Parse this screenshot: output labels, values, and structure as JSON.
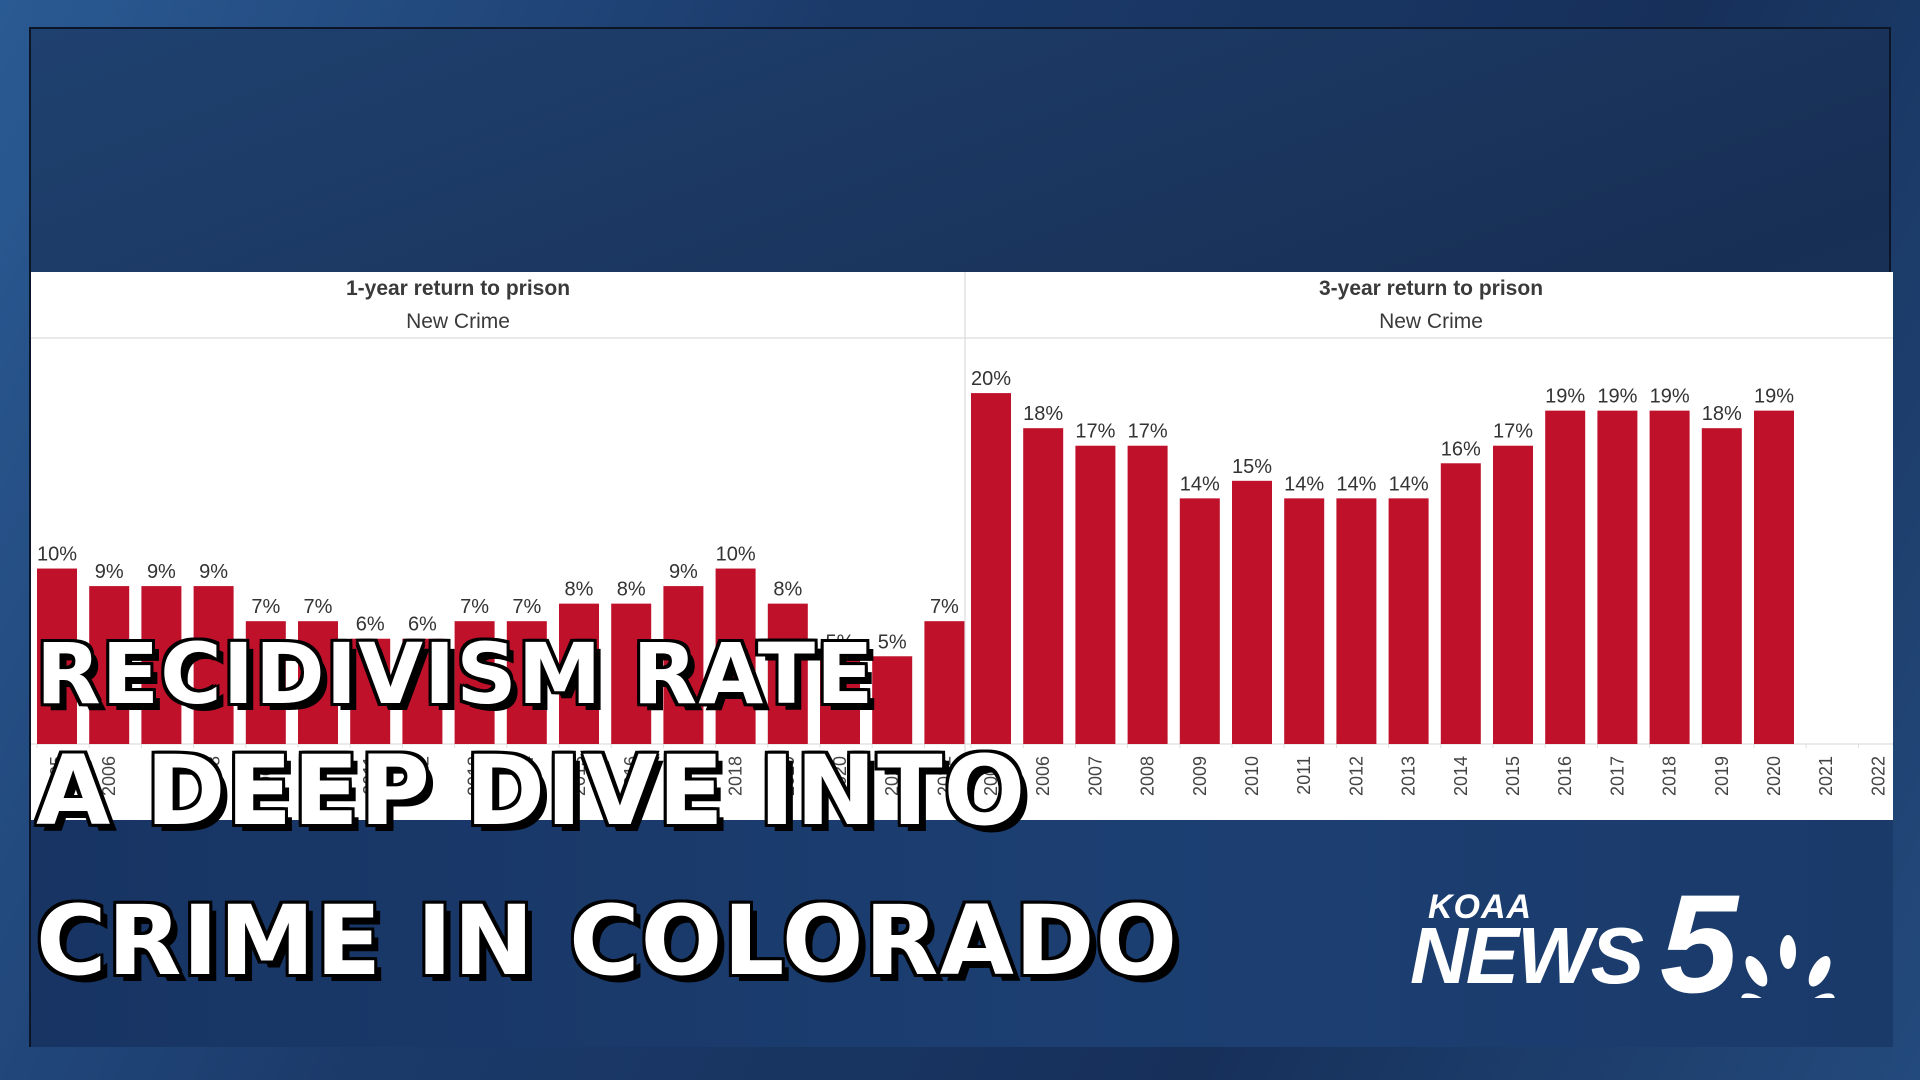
{
  "chart_data": [
    {
      "type": "bar",
      "title": "1-year return to prison",
      "subtitle": "New Crime",
      "categories": [
        "2005",
        "2006",
        "2007",
        "2008",
        "2009",
        "2010",
        "2011",
        "2012",
        "2013",
        "2014",
        "2015",
        "2016",
        "2017",
        "2018",
        "2019",
        "2020",
        "2021",
        "2022"
      ],
      "values": [
        10,
        9,
        9,
        9,
        7,
        7,
        6,
        6,
        7,
        7,
        8,
        8,
        9,
        10,
        8,
        5,
        5,
        7
      ],
      "data_labels": [
        "10%",
        "9%",
        "9%",
        "9%",
        "7%",
        "7%",
        "6%",
        "6%",
        "7%",
        "7%",
        "8%",
        "8%",
        "9%",
        "10%",
        "8%",
        "5%",
        "5%",
        "7%"
      ],
      "color": "#c0112b",
      "ylim": [
        0,
        22
      ]
    },
    {
      "type": "bar",
      "title": "3-year return to prison",
      "subtitle": "New Crime",
      "categories": [
        "2005",
        "2006",
        "2007",
        "2008",
        "2009",
        "2010",
        "2011",
        "2012",
        "2013",
        "2014",
        "2015",
        "2016",
        "2017",
        "2018",
        "2019",
        "2020",
        "2021",
        "2022"
      ],
      "values": [
        20,
        18,
        17,
        17,
        14,
        15,
        14,
        14,
        14,
        16,
        17,
        19,
        19,
        19,
        18,
        19,
        null,
        null
      ],
      "data_labels": [
        "20%",
        "18%",
        "17%",
        "17%",
        "14%",
        "15%",
        "14%",
        "14%",
        "14%",
        "16%",
        "17%",
        "19%",
        "19%",
        "19%",
        "18%",
        "19%",
        "",
        ""
      ],
      "color": "#c0112b",
      "ylim": [
        0,
        22
      ]
    }
  ],
  "headline": {
    "line1": "RECIDIVISM  RATE",
    "line2": "A DEEP DIVE INTO",
    "line3": "CRIME IN COLORADO"
  },
  "logo": {
    "top": "KOAA",
    "main": "NEWS",
    "number": "5"
  },
  "colors": {
    "bar": "#c0112b",
    "background": "#1d3d6d",
    "headline_text": "#ffffff"
  }
}
